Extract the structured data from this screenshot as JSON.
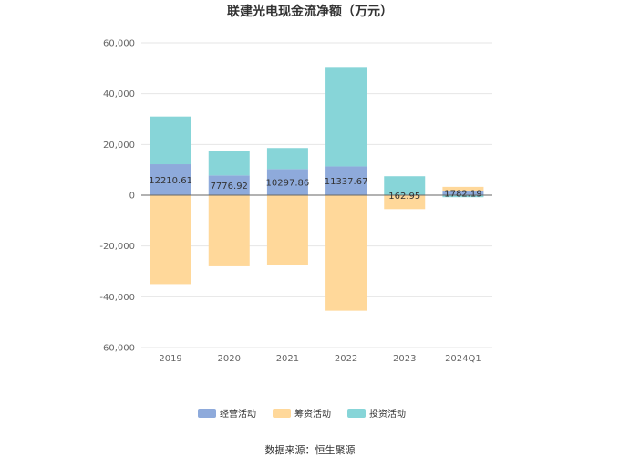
{
  "chart_data": {
    "type": "bar",
    "stacked": true,
    "title": "联建光电现金流净额（万元）",
    "categories": [
      "2019",
      "2020",
      "2021",
      "2022",
      "2023",
      "2024Q1"
    ],
    "series": [
      {
        "name": "经营活动",
        "color": "#8eaadb",
        "values": [
          12210.61,
          7776.92,
          10297.86,
          11337.67,
          162.95,
          1782.19
        ]
      },
      {
        "name": "筹资活动",
        "color": "#ffd89a",
        "values": [
          -35000,
          -28000,
          -27500,
          -45500,
          -5500,
          1500
        ]
      },
      {
        "name": "投资活动",
        "color": "#87d5d8",
        "values": [
          18800,
          9800,
          8300,
          39200,
          7300,
          -800
        ]
      }
    ],
    "data_labels": [
      "12210.61",
      "7776.92",
      "10297.86",
      "11337.67",
      "162.95",
      "1782.19"
    ],
    "ylim": [
      -60000,
      60000
    ],
    "yticks": [
      60000,
      40000,
      20000,
      0,
      -20000,
      -40000,
      -60000
    ],
    "ytick_labels": [
      "60,000",
      "40,000",
      "20,000",
      "0",
      "-20,000",
      "-40,000",
      "-60,000"
    ],
    "grid": true,
    "legend_position": "bottom"
  },
  "source_text": "数据来源：恒生聚源"
}
